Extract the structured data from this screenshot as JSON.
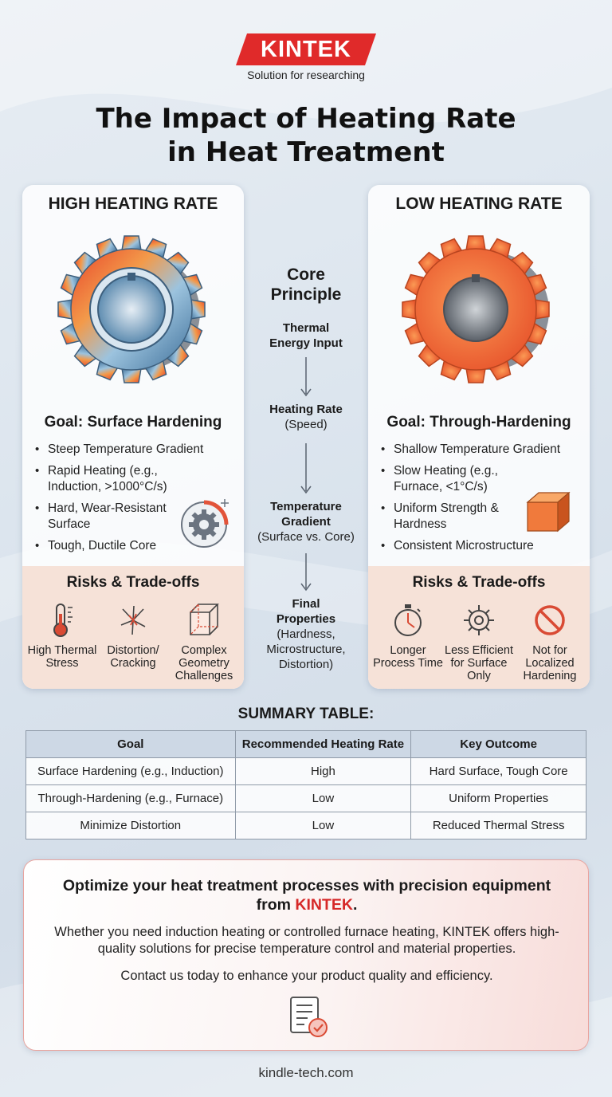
{
  "brand": {
    "logo": "KINTEK",
    "tagline": "Solution for researching",
    "color": "#e02a2a"
  },
  "title": {
    "line1": "The Impact of Heating Rate",
    "line2": "in Heat Treatment"
  },
  "left_panel": {
    "title": "HIGH HEATING RATE",
    "goal": "Goal: Surface Hardening",
    "bullets": [
      "Steep Temperature Gradient",
      "Rapid Heating (e.g., Induction, >1000°C/s)",
      "Hard, Wear-Resistant Surface",
      "Tough, Ductile Core"
    ],
    "side_icon": "gear-badge-icon",
    "risks_title": "Risks & Trade-offs",
    "risks": [
      {
        "icon": "thermometer-icon",
        "label": "High Thermal Stress"
      },
      {
        "icon": "crack-burst-icon",
        "label": "Distortion/ Cracking"
      },
      {
        "icon": "cube-outline-icon",
        "label": "Complex Geometry Challenges"
      }
    ]
  },
  "right_panel": {
    "title": "LOW HEATING RATE",
    "goal": "Goal: Through-Hardening",
    "bullets": [
      "Shallow Temperature Gradient",
      "Slow Heating (e.g., Furnace, <1°C/s)",
      "Uniform Strength & Hardness",
      "Consistent Microstructure"
    ],
    "side_icon": "orange-cube-icon",
    "risks_title": "Risks & Trade-offs",
    "risks": [
      {
        "icon": "stopwatch-icon",
        "label": "Longer Process Time"
      },
      {
        "icon": "gear-icon",
        "label": "Less Efficient for Surface Only"
      },
      {
        "icon": "no-sign-icon",
        "label": "Not for Localized Hardening"
      }
    ]
  },
  "center": {
    "title": "Core Principle",
    "steps": [
      {
        "bold": "Thermal Energy Input",
        "sub": ""
      },
      {
        "bold": "Heating Rate",
        "sub": "(Speed)"
      },
      {
        "bold": "Temperature Gradient",
        "sub": "(Surface vs. Core)"
      },
      {
        "bold": "Final Properties",
        "sub": "(Hardness, Microstructure, Distortion)"
      }
    ]
  },
  "summary": {
    "title": "SUMMARY TABLE:",
    "headers": [
      "Goal",
      "Recommended Heating Rate",
      "Key Outcome"
    ],
    "rows": [
      [
        "Surface Hardening (e.g., Induction)",
        "High",
        "Hard Surface, Tough Core"
      ],
      [
        "Through-Hardening (e.g., Furnace)",
        "Low",
        "Uniform Properties"
      ],
      [
        "Minimize Distortion",
        "Low",
        "Reduced Thermal Stress"
      ]
    ]
  },
  "cta": {
    "headline_pre": "Optimize your heat treatment processes with precision equipment from ",
    "headline_brand": "KINTEK",
    "headline_post": ".",
    "body": "Whether you need induction heating or controlled furnace heating, KINTEK offers high-quality solutions for precise temperature control and material properties.",
    "contact": "Contact us today to enhance your product quality and efficiency.",
    "icon": "document-check-icon"
  },
  "footer": "kindle-tech.com"
}
